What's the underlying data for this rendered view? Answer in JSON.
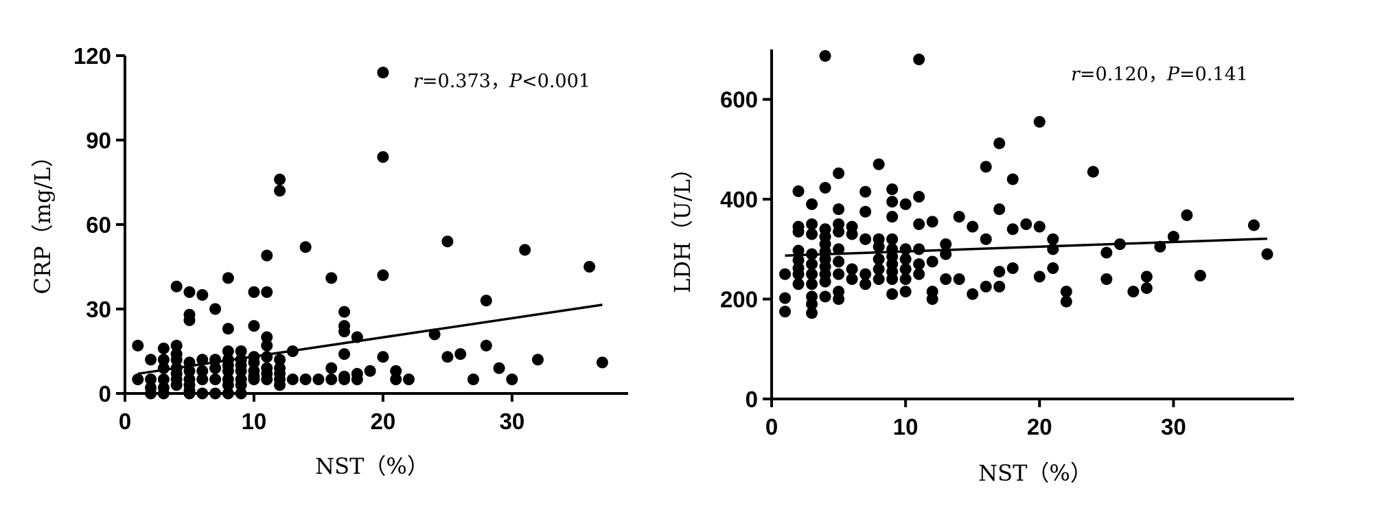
{
  "chart_data": [
    {
      "type": "scatter",
      "xlabel": "NST（%）",
      "ylabel": "CRP（mg/L）",
      "annotation": {
        "r_symbol": "r",
        "r_text": "=0.373，",
        "p_symbol": "P",
        "p_text": "<0.001"
      },
      "xlim": [
        0,
        39
      ],
      "ylim": [
        0,
        120
      ],
      "xticks": [
        "0",
        "10",
        "20",
        "30"
      ],
      "yticks": [
        "0",
        "30",
        "60",
        "90",
        "120"
      ],
      "fit_line": {
        "x": [
          1,
          37
        ],
        "y": [
          7,
          31.5
        ]
      },
      "points": {
        "x": [
          1,
          1,
          2,
          2,
          2,
          2,
          3,
          3,
          3,
          3,
          3,
          3,
          4,
          4,
          4,
          4,
          4,
          4,
          4,
          4,
          5,
          5,
          5,
          5,
          5,
          5,
          5,
          5,
          5,
          6,
          6,
          6,
          6,
          6,
          7,
          7,
          7,
          7,
          7,
          8,
          8,
          8,
          8,
          8,
          8,
          8,
          8,
          8,
          9,
          9,
          9,
          9,
          9,
          9,
          9,
          10,
          10,
          10,
          10,
          10,
          10,
          10,
          11,
          11,
          11,
          11,
          11,
          11,
          11,
          11,
          12,
          12,
          12,
          12,
          12,
          12,
          12,
          13,
          13,
          14,
          14,
          15,
          16,
          16,
          16,
          17,
          17,
          17,
          17,
          17,
          17,
          18,
          18,
          18,
          19,
          20,
          20,
          20,
          20,
          21,
          21,
          22,
          24,
          25,
          25,
          26,
          27,
          28,
          28,
          29,
          30,
          31,
          32,
          36,
          37
        ],
        "y": [
          17,
          5,
          12,
          5,
          2,
          0,
          16,
          12,
          9,
          5,
          2,
          0,
          38,
          17,
          14,
          12,
          9,
          7,
          5,
          3,
          36,
          28,
          26,
          11,
          8,
          5,
          3,
          1,
          0,
          35,
          12,
          8,
          5,
          0,
          30,
          12,
          9,
          5,
          0,
          41,
          23,
          15,
          12,
          10,
          8,
          5,
          3,
          0,
          15,
          12,
          10,
          8,
          5,
          3,
          0,
          36,
          24,
          13,
          11,
          8,
          6,
          5,
          49,
          36,
          20,
          17,
          13,
          9,
          7,
          5,
          76,
          72,
          12,
          9,
          7,
          5,
          3,
          15,
          5,
          52,
          5,
          5,
          41,
          9,
          5,
          29,
          24,
          22,
          14,
          6,
          5,
          20,
          7,
          5,
          8,
          114,
          84,
          42,
          13,
          8,
          5,
          5,
          21,
          54,
          13,
          14,
          5,
          33,
          17,
          9,
          5,
          51,
          12,
          45,
          11
        ]
      }
    },
    {
      "type": "scatter",
      "xlabel": "NST（%）",
      "ylabel": "LDH（U/L）",
      "annotation": {
        "r_symbol": "r",
        "r_text": "=0.120，",
        "p_symbol": "P",
        "p_text": "=0.141"
      },
      "xlim": [
        0,
        39
      ],
      "ylim": [
        0,
        700
      ],
      "xticks": [
        "0",
        "10",
        "20",
        "30"
      ],
      "yticks": [
        "0",
        "200",
        "400",
        "600"
      ],
      "fit_line": {
        "x": [
          1,
          37
        ],
        "y": [
          287,
          321
        ]
      },
      "points": {
        "x": [
          1,
          1,
          1,
          2,
          2,
          2,
          2,
          2,
          2,
          2,
          2,
          3,
          3,
          3,
          3,
          3,
          3,
          3,
          3,
          3,
          3,
          4,
          4,
          4,
          4,
          4,
          4,
          4,
          4,
          4,
          4,
          4,
          5,
          5,
          5,
          5,
          5,
          5,
          5,
          5,
          5,
          6,
          6,
          6,
          6,
          7,
          7,
          7,
          7,
          7,
          8,
          8,
          8,
          8,
          8,
          8,
          9,
          9,
          9,
          9,
          9,
          9,
          9,
          9,
          9,
          9,
          10,
          10,
          10,
          10,
          10,
          10,
          11,
          11,
          11,
          11,
          11,
          11,
          12,
          12,
          12,
          12,
          13,
          13,
          13,
          14,
          14,
          15,
          15,
          16,
          16,
          16,
          17,
          17,
          17,
          17,
          18,
          18,
          18,
          19,
          20,
          20,
          20,
          21,
          21,
          21,
          22,
          22,
          24,
          25,
          25,
          26,
          27,
          28,
          28,
          29,
          30,
          31,
          32,
          36,
          37
        ],
        "y": [
          250,
          202,
          175,
          416,
          345,
          335,
          297,
          278,
          262,
          250,
          230,
          390,
          350,
          330,
          290,
          270,
          250,
          230,
          205,
          190,
          172,
          687,
          423,
          340,
          325,
          310,
          295,
          280,
          265,
          250,
          235,
          205,
          452,
          380,
          350,
          335,
          300,
          275,
          250,
          215,
          200,
          345,
          330,
          260,
          240,
          415,
          375,
          320,
          250,
          230,
          470,
          320,
          305,
          280,
          260,
          240,
          420,
          395,
          365,
          320,
          300,
          285,
          270,
          255,
          240,
          210,
          390,
          300,
          280,
          260,
          240,
          215,
          680,
          405,
          350,
          300,
          270,
          250,
          355,
          275,
          215,
          200,
          310,
          290,
          240,
          365,
          240,
          345,
          210,
          465,
          320,
          225,
          512,
          380,
          255,
          225,
          440,
          340,
          262,
          350,
          555,
          345,
          245,
          320,
          300,
          262,
          215,
          195,
          455,
          293,
          240,
          310,
          215,
          245,
          222,
          305,
          325,
          368,
          247,
          348,
          290
        ]
      }
    }
  ]
}
